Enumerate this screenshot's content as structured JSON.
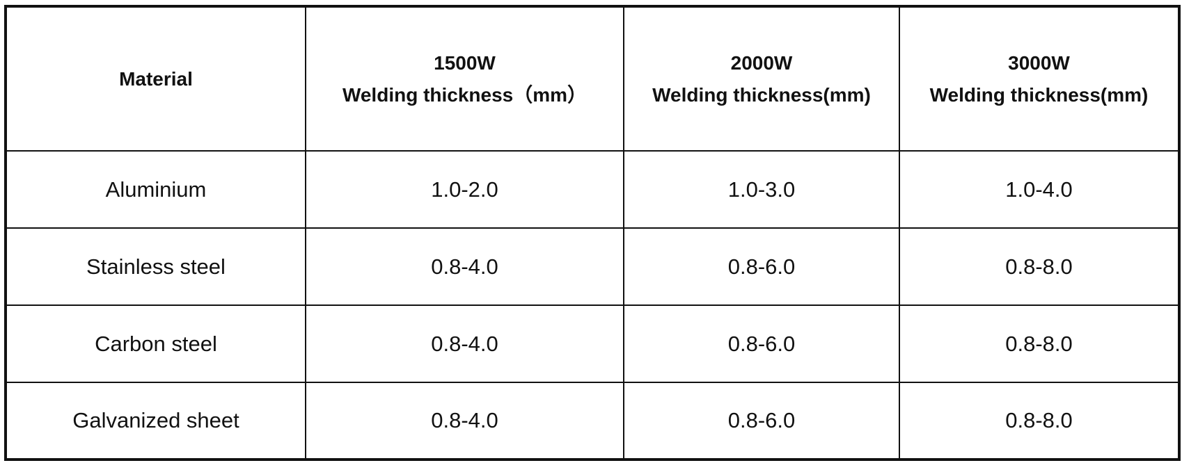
{
  "table": {
    "header": {
      "material": "Material",
      "columns": [
        {
          "power": "1500W",
          "unit_label": "Welding thickness（mm）"
        },
        {
          "power": "2000W",
          "unit_label": "Welding thickness(mm)"
        },
        {
          "power": "3000W",
          "unit_label": "Welding thickness(mm)"
        }
      ]
    },
    "rows": [
      {
        "material": "Aluminium",
        "values": [
          "1.0-2.0",
          "1.0-3.0",
          "1.0-4.0"
        ]
      },
      {
        "material": "Stainless steel",
        "values": [
          "0.8-4.0",
          "0.8-6.0",
          "0.8-8.0"
        ]
      },
      {
        "material": "Carbon steel",
        "values": [
          "0.8-4.0",
          "0.8-6.0",
          "0.8-8.0"
        ]
      },
      {
        "material": "Galvanized sheet",
        "values": [
          "0.8-4.0",
          "0.8-6.0",
          "0.8-8.0"
        ]
      }
    ]
  }
}
